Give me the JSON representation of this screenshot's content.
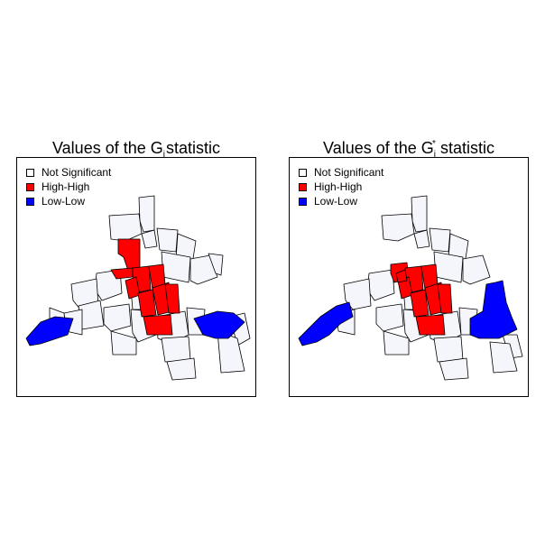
{
  "colors": {
    "not_significant": "#f4f6fc",
    "high_high": "#ff0000",
    "low_low": "#0000ff"
  },
  "panels": [
    {
      "title_main": "Values of the G",
      "title_sub": "i",
      "title_sup": "",
      "title_rest": " statistic",
      "legend": [
        {
          "label": "Not Significant",
          "class": "not_significant"
        },
        {
          "label": "High-High",
          "class": "high_high"
        },
        {
          "label": "Low-Low",
          "class": "low_low"
        }
      ]
    },
    {
      "title_main": "Values of the G",
      "title_sub": "i",
      "title_sup": "*",
      "title_rest": " statistic",
      "legend": [
        {
          "label": "Not Significant",
          "class": "not_significant"
        },
        {
          "label": "High-High",
          "class": "high_high"
        },
        {
          "label": "Low-Low",
          "class": "low_low"
        }
      ]
    }
  ]
}
